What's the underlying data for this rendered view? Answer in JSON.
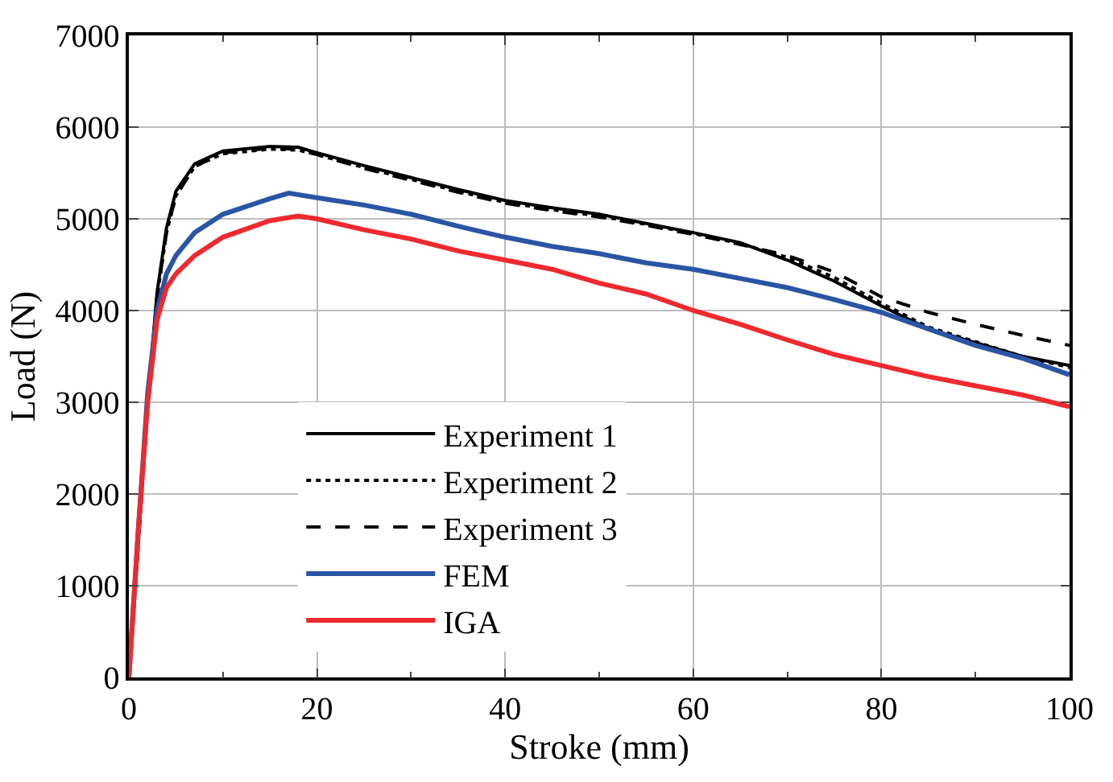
{
  "chart_data": {
    "type": "line",
    "xlabel": "Stroke (mm)",
    "ylabel": "Load (N)",
    "xlim": [
      0,
      100
    ],
    "ylim": [
      0,
      7000
    ],
    "xticks": [
      0,
      20,
      40,
      60,
      80,
      100
    ],
    "yticks": [
      0,
      1000,
      2000,
      3000,
      4000,
      5000,
      6000,
      7000
    ],
    "grid": true,
    "legend": "bottom",
    "marker": "none",
    "series": [
      {
        "name": "Experiment 1",
        "color": "#000000",
        "line_style": "solid",
        "x": [
          0,
          2,
          3,
          4,
          5,
          7,
          10,
          15,
          18,
          20,
          25,
          30,
          35,
          40,
          45,
          50,
          55,
          60,
          65,
          70,
          75,
          80,
          85,
          90,
          95,
          100
        ],
        "values": [
          0,
          3000,
          4200,
          4900,
          5300,
          5600,
          5740,
          5790,
          5780,
          5720,
          5580,
          5450,
          5320,
          5200,
          5120,
          5050,
          4950,
          4850,
          4740,
          4550,
          4320,
          4050,
          3800,
          3650,
          3500,
          3400
        ]
      },
      {
        "name": "Experiment 2",
        "color": "#000000",
        "line_style": "dotted",
        "x": [
          0,
          1,
          2,
          3,
          4,
          5,
          7,
          10,
          15,
          18,
          20,
          25,
          30,
          35,
          40,
          45,
          50,
          55,
          60,
          65,
          70,
          75,
          80,
          85,
          90,
          95,
          100
        ],
        "values": [
          0,
          1450,
          2950,
          4150,
          4850,
          5250,
          5570,
          5710,
          5760,
          5750,
          5700,
          5560,
          5430,
          5300,
          5180,
          5100,
          5030,
          4940,
          4840,
          4730,
          4580,
          4360,
          4080,
          3820,
          3660,
          3500,
          3380
        ]
      },
      {
        "name": "Experiment 3",
        "color": "#000000",
        "line_style": "dashed",
        "x": [
          0,
          1,
          2,
          3,
          4,
          5,
          7,
          10,
          15,
          18,
          20,
          25,
          30,
          35,
          40,
          45,
          50,
          55,
          60,
          65,
          70,
          75,
          80,
          85,
          90,
          95,
          100
        ],
        "values": [
          0,
          1450,
          2950,
          4150,
          4850,
          5250,
          5570,
          5720,
          5770,
          5760,
          5700,
          5550,
          5420,
          5290,
          5170,
          5090,
          5020,
          4930,
          4830,
          4720,
          4600,
          4420,
          4150,
          3980,
          3850,
          3730,
          3620
        ]
      },
      {
        "name": "FEM",
        "color": "#2a55a5",
        "line_style": "solid",
        "x": [
          0,
          1,
          2,
          3,
          4,
          5,
          7,
          10,
          15,
          17,
          20,
          25,
          30,
          35,
          40,
          45,
          50,
          55,
          60,
          65,
          70,
          75,
          80,
          85,
          90,
          95,
          100
        ],
        "values": [
          0,
          1600,
          3100,
          4000,
          4400,
          4600,
          4850,
          5050,
          5220,
          5280,
          5230,
          5150,
          5050,
          4920,
          4800,
          4700,
          4620,
          4520,
          4450,
          4350,
          4250,
          4120,
          3980,
          3800,
          3620,
          3480,
          3300
        ]
      },
      {
        "name": "IGA",
        "color": "#ee2a2e",
        "line_style": "solid",
        "x": [
          0,
          1,
          2,
          3,
          4,
          5,
          7,
          10,
          15,
          18,
          20,
          25,
          30,
          35,
          40,
          45,
          50,
          55,
          60,
          65,
          70,
          75,
          80,
          85,
          90,
          95,
          100
        ],
        "values": [
          0,
          1600,
          3000,
          3900,
          4250,
          4400,
          4600,
          4800,
          4980,
          5030,
          5000,
          4880,
          4780,
          4650,
          4550,
          4450,
          4300,
          4180,
          4000,
          3850,
          3680,
          3520,
          3400,
          3280,
          3180,
          3080,
          2950
        ]
      }
    ]
  }
}
